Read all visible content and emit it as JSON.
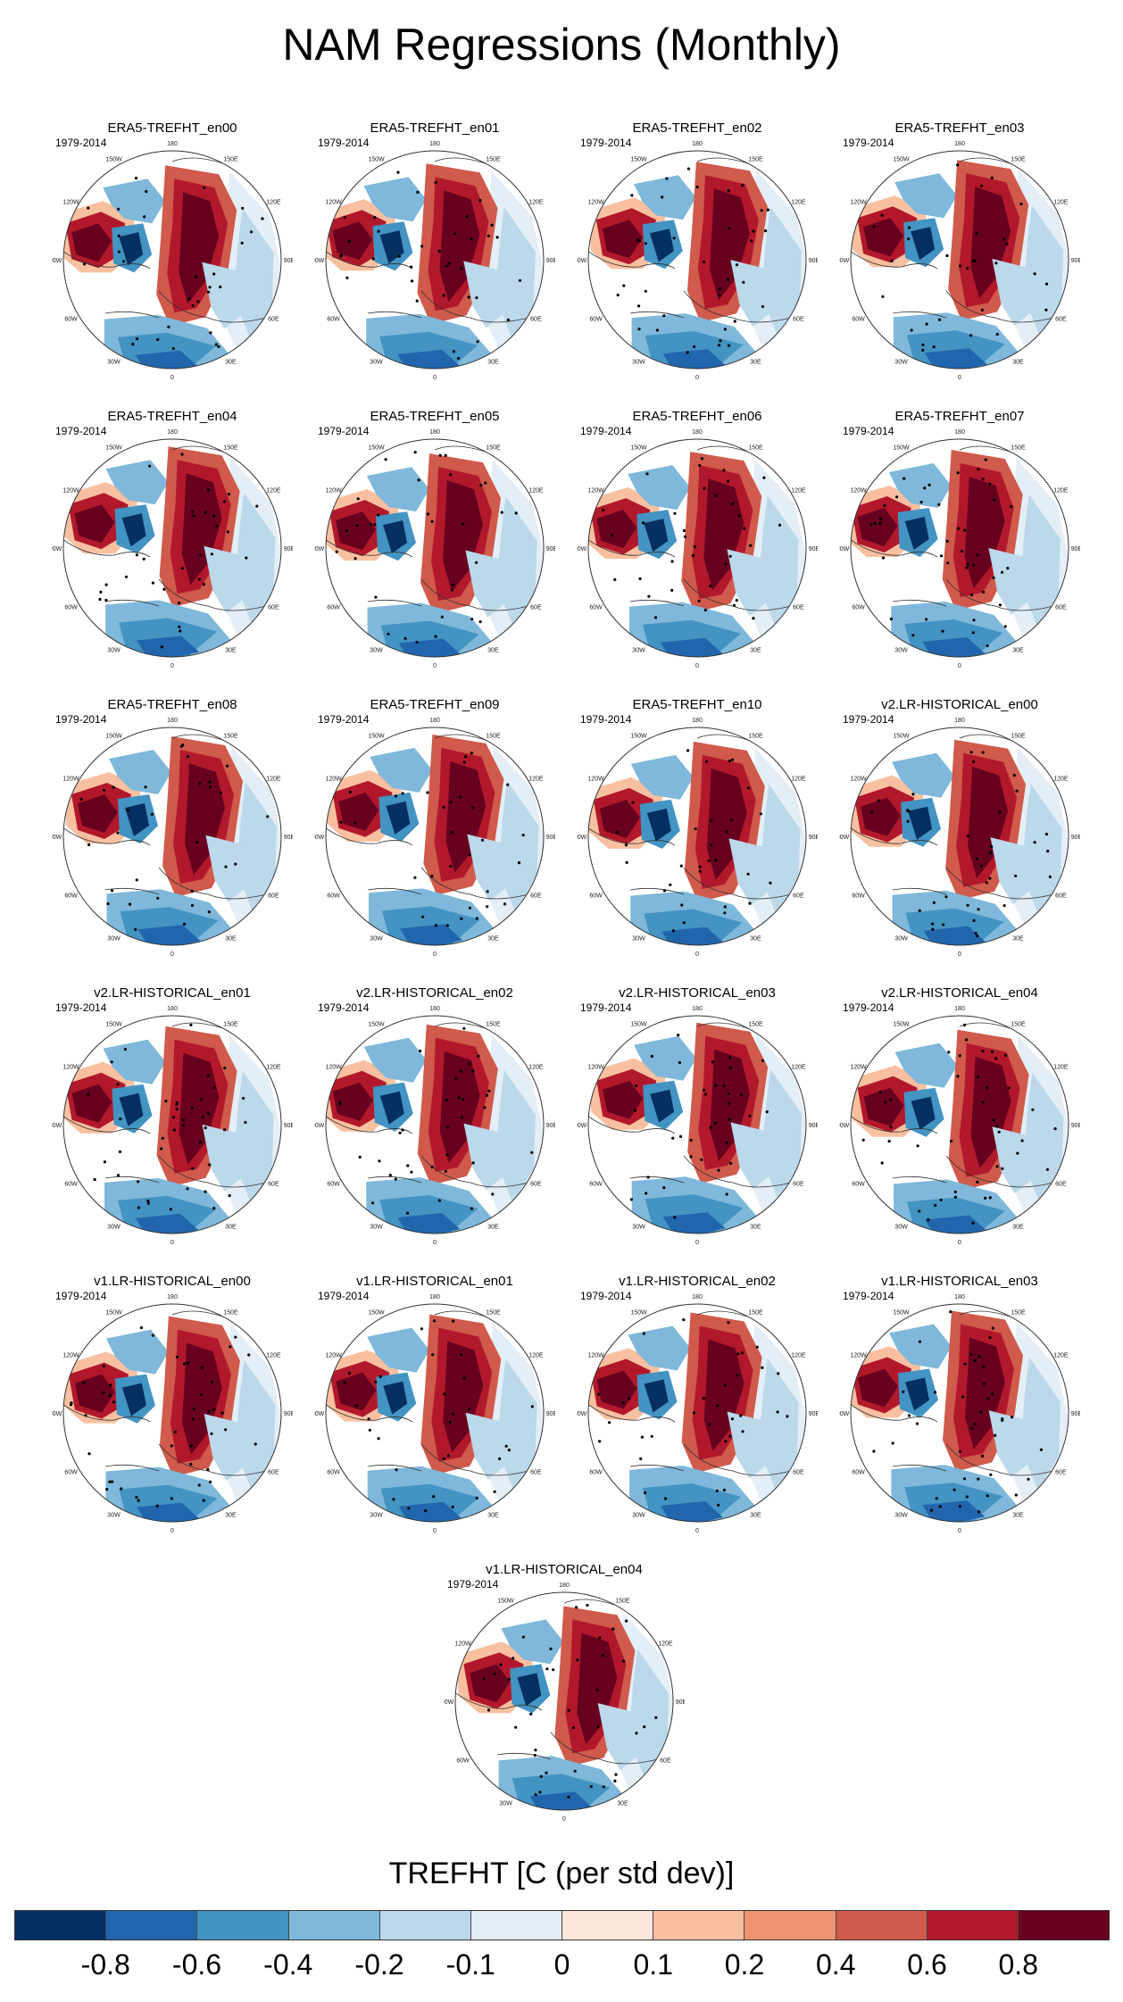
{
  "title": "NAM Regressions (Monthly)",
  "period_label": "1979-2014",
  "panels": [
    {
      "title": "ERA5-TREFHT_en00"
    },
    {
      "title": "ERA5-TREFHT_en01"
    },
    {
      "title": "ERA5-TREFHT_en02"
    },
    {
      "title": "ERA5-TREFHT_en03"
    },
    {
      "title": "ERA5-TREFHT_en04"
    },
    {
      "title": "ERA5-TREFHT_en05"
    },
    {
      "title": "ERA5-TREFHT_en06"
    },
    {
      "title": "ERA5-TREFHT_en07"
    },
    {
      "title": "ERA5-TREFHT_en08"
    },
    {
      "title": "ERA5-TREFHT_en09"
    },
    {
      "title": "ERA5-TREFHT_en10"
    },
    {
      "title": "v2.LR-HISTORICAL_en00"
    },
    {
      "title": "v2.LR-HISTORICAL_en01"
    },
    {
      "title": "v2.LR-HISTORICAL_en02"
    },
    {
      "title": "v2.LR-HISTORICAL_en03"
    },
    {
      "title": "v2.LR-HISTORICAL_en04"
    },
    {
      "title": "v1.LR-HISTORICAL_en00"
    },
    {
      "title": "v1.LR-HISTORICAL_en01"
    },
    {
      "title": "v1.LR-HISTORICAL_en02"
    },
    {
      "title": "v1.LR-HISTORICAL_en03"
    },
    {
      "title": "v1.LR-HISTORICAL_en04"
    }
  ],
  "longitude_labels": [
    "180",
    "150E",
    "120E",
    "90E",
    "60E",
    "30E",
    "0",
    "30W",
    "60W",
    "90W",
    "120W",
    "150W"
  ],
  "colorbar": {
    "title": "TREFHT [C (per std dev)]",
    "colors": [
      "#053061",
      "#2166ac",
      "#4393c3",
      "#7fb8da",
      "#bcd8eb",
      "#e3eef6",
      "#fbe6dc",
      "#f8c0a0",
      "#ec9470",
      "#d05a4b",
      "#b2182b",
      "#67001f"
    ],
    "tick_labels": [
      "-0.8",
      "-0.6",
      "-0.4",
      "-0.2",
      "-0.1",
      "0",
      "0.1",
      "0.2",
      "0.4",
      "0.6",
      "0.8"
    ]
  }
}
